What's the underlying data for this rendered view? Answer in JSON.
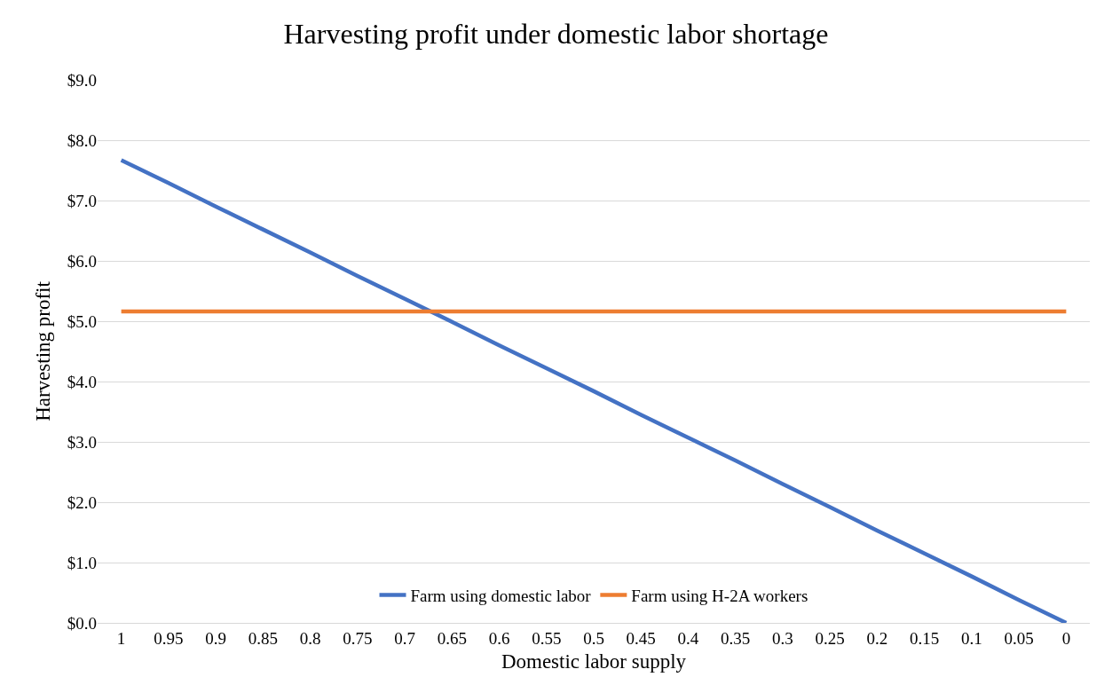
{
  "chart_data": {
    "type": "line",
    "title": "Harvesting profit under domestic labor shortage",
    "xlabel": "Domestic labor supply",
    "ylabel": "Harvesting profit",
    "categories": [
      "1",
      "0.95",
      "0.9",
      "0.85",
      "0.8",
      "0.75",
      "0.7",
      "0.65",
      "0.6",
      "0.55",
      "0.5",
      "0.45",
      "0.4",
      "0.35",
      "0.3",
      "0.25",
      "0.2",
      "0.15",
      "0.1",
      "0.05",
      "0"
    ],
    "series": [
      {
        "name": "Farm using domestic labor",
        "color": "#4472c4",
        "values": [
          7.67,
          7.29,
          6.9,
          6.52,
          6.14,
          5.75,
          5.37,
          4.99,
          4.6,
          4.22,
          3.84,
          3.45,
          3.07,
          2.69,
          2.3,
          1.92,
          1.53,
          1.15,
          0.77,
          0.38,
          0
        ]
      },
      {
        "name": "Farm using H-2A workers",
        "color": "#ed7d31",
        "values": [
          5.16,
          5.16,
          5.16,
          5.16,
          5.16,
          5.16,
          5.16,
          5.16,
          5.16,
          5.16,
          5.16,
          5.16,
          5.16,
          5.16,
          5.16,
          5.16,
          5.16,
          5.16,
          5.16,
          5.16,
          5.16
        ]
      }
    ],
    "ylim": [
      0,
      9
    ],
    "yticks": [
      {
        "value": 0,
        "label": "$0.0"
      },
      {
        "value": 1,
        "label": "$1.0"
      },
      {
        "value": 2,
        "label": "$2.0"
      },
      {
        "value": 3,
        "label": "$3.0"
      },
      {
        "value": 4,
        "label": "$4.0"
      },
      {
        "value": 5,
        "label": "$5.0"
      },
      {
        "value": 6,
        "label": "$6.0"
      },
      {
        "value": 7,
        "label": "$7.0"
      },
      {
        "value": 8,
        "label": "$8.0"
      },
      {
        "value": 9,
        "label": "$9.0"
      }
    ],
    "grid": "y",
    "legend": "bottom",
    "marker": "none",
    "line_style": "solid"
  }
}
